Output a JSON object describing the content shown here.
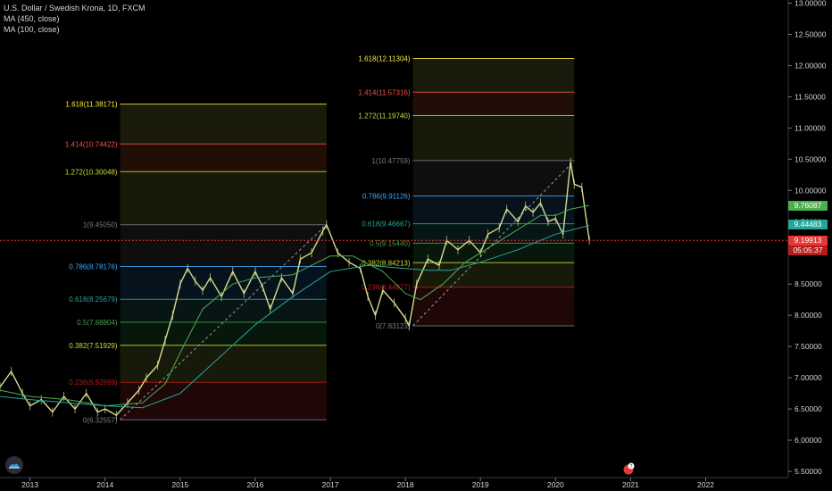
{
  "legend": {
    "title": "U.S. Dollar / Swedish Krona, 1D, FXCM",
    "ma1": "MA (450, close)",
    "ma2": "MA (100, close)"
  },
  "tags": {
    "ma100": "9.76087",
    "ma450": "9.44483",
    "price": "9.19913",
    "countdown": "05:05:37"
  },
  "colors": {
    "bg": "#000000",
    "candle": "#d6dc8f",
    "ma100": "#4caf50",
    "ma450": "#26a69a",
    "price_line": "#e53935",
    "axis_text": "#d1d4dc"
  },
  "chart_data": {
    "type": "line",
    "symbol": "USDSEK",
    "timeframe": "1D",
    "yaxis": {
      "min": 5.4,
      "max": 13.05,
      "ticks": [
        "5.50000",
        "6.00000",
        "6.50000",
        "7.00000",
        "7.50000",
        "8.00000",
        "8.50000",
        "9.00000",
        "9.50000",
        "10.00000",
        "10.50000",
        "11.00000",
        "11.50000",
        "12.00000",
        "12.50000",
        "13.00000"
      ]
    },
    "xaxis": {
      "min": 2012.6,
      "max": 2023.1,
      "ticks": [
        "2013",
        "2014",
        "2015",
        "2016",
        "2017",
        "2018",
        "2019",
        "2020",
        "2021",
        "2022"
      ]
    },
    "series": [
      {
        "x": [
          2012.6,
          2012.75,
          2012.9,
          2013.0,
          2013.15,
          2013.3,
          2013.45,
          2013.6,
          2013.75,
          2013.9,
          2014.0,
          2014.15,
          2014.3,
          2014.45,
          2014.55,
          2014.7,
          2014.8,
          2014.9,
          2015.0,
          2015.1,
          2015.2,
          2015.3,
          2015.4,
          2015.55,
          2015.7,
          2015.85,
          2016.0,
          2016.1,
          2016.2,
          2016.35,
          2016.5,
          2016.6,
          2016.75,
          2016.9,
          2016.95,
          2017.1,
          2017.25,
          2017.4,
          2017.5,
          2017.6,
          2017.7,
          2017.85,
          2018.0,
          2018.05,
          2018.15,
          2018.3,
          2018.45,
          2018.55,
          2018.7,
          2018.85,
          2019.0,
          2019.1,
          2019.25,
          2019.35,
          2019.5,
          2019.6,
          2019.7,
          2019.8,
          2019.9,
          2020.0,
          2020.1,
          2020.2,
          2020.25,
          2020.35,
          2020.45
        ],
        "y": [
          6.85,
          7.1,
          6.75,
          6.55,
          6.65,
          6.45,
          6.7,
          6.5,
          6.75,
          6.45,
          6.5,
          6.4,
          6.6,
          6.8,
          7.0,
          7.2,
          7.6,
          8.0,
          8.5,
          8.75,
          8.55,
          8.4,
          8.6,
          8.3,
          8.7,
          8.35,
          8.7,
          8.45,
          8.1,
          8.6,
          8.35,
          8.9,
          9.0,
          9.35,
          9.45,
          9.0,
          8.85,
          8.75,
          8.3,
          8.0,
          8.4,
          8.2,
          7.95,
          7.83,
          8.5,
          8.9,
          8.8,
          9.2,
          9.05,
          9.2,
          9.0,
          9.3,
          9.4,
          9.7,
          9.5,
          9.75,
          9.65,
          9.8,
          9.5,
          9.55,
          9.3,
          10.45,
          10.1,
          10.05,
          9.2
        ],
        "color": "#d6dc8f"
      },
      {
        "x": [
          2012.6,
          2013.0,
          2013.5,
          2014.0,
          2014.5,
          2014.8,
          2015.0,
          2015.3,
          2015.7,
          2016.0,
          2016.5,
          2017.0,
          2017.3,
          2017.7,
          2018.0,
          2018.2,
          2018.5,
          2018.8,
          2019.0,
          2019.4,
          2019.8,
          2020.0,
          2020.2,
          2020.45
        ],
        "y": [
          6.8,
          6.7,
          6.65,
          6.55,
          6.6,
          6.9,
          7.4,
          8.1,
          8.5,
          8.6,
          8.65,
          8.95,
          8.95,
          8.7,
          8.35,
          8.25,
          8.5,
          8.85,
          9.0,
          9.3,
          9.6,
          9.6,
          9.7,
          9.76
        ],
        "color": "#4caf50"
      },
      {
        "x": [
          2012.6,
          2013.0,
          2013.5,
          2014.0,
          2014.5,
          2015.0,
          2015.5,
          2016.0,
          2016.5,
          2017.0,
          2017.5,
          2018.0,
          2018.3,
          2018.6,
          2019.0,
          2019.5,
          2020.0,
          2020.45
        ],
        "y": [
          6.7,
          6.65,
          6.6,
          6.55,
          6.52,
          6.75,
          7.3,
          7.85,
          8.3,
          8.7,
          8.8,
          8.75,
          8.72,
          8.72,
          8.85,
          9.05,
          9.3,
          9.44
        ],
        "color": "#26a69a"
      }
    ],
    "fib_retracements": [
      {
        "x_start": 2014.2,
        "x_end": 2016.95,
        "levels": [
          {
            "label": "0(6.32557)",
            "value": 6.32557,
            "color": "#787b86"
          },
          {
            "label": "0.236(6.92699)",
            "value": 6.92699,
            "color": "#b71c1c"
          },
          {
            "label": "0.382(7.51929)",
            "value": 7.51929,
            "color": "#cddc39"
          },
          {
            "label": "0.5(7.88804)",
            "value": 7.88804,
            "color": "#43a047"
          },
          {
            "label": "0.618(8.25679)",
            "value": 8.25679,
            "color": "#26a69a"
          },
          {
            "label": "0.786(8.78176)",
            "value": 8.78176,
            "color": "#42a5f5"
          },
          {
            "label": "1(9.45050)",
            "value": 9.4505,
            "color": "#787b86"
          },
          {
            "label": "1.272(10.30048)",
            "value": 10.30048,
            "color": "#cddc39"
          },
          {
            "label": "1.414(10.74422)",
            "value": 10.74422,
            "color": "#ef5350"
          },
          {
            "label": "1.618(11.38171)",
            "value": 11.38171,
            "color": "#ffeb3b"
          }
        ]
      },
      {
        "x_start": 2018.1,
        "x_end": 2020.25,
        "levels": [
          {
            "label": "0(7.83123)",
            "value": 7.83123,
            "color": "#787b86"
          },
          {
            "label": "0.236(8.44977)",
            "value": 8.44977,
            "color": "#b71c1c"
          },
          {
            "label": "0.382(8.84213)",
            "value": 8.84213,
            "color": "#cddc39"
          },
          {
            "label": "0.5(9.15440)",
            "value": 9.1544,
            "color": "#43a047"
          },
          {
            "label": "0.618(9.46667)",
            "value": 9.46667,
            "color": "#26a69a"
          },
          {
            "label": "0.786(9.91126)",
            "value": 9.91126,
            "color": "#42a5f5"
          },
          {
            "label": "1(10.47759)",
            "value": 10.47759,
            "color": "#787b86"
          },
          {
            "label": "1.272(11.19740)",
            "value": 11.1974,
            "color": "#cddc39"
          },
          {
            "label": "1.414(11.57316)",
            "value": 11.57316,
            "color": "#ef5350"
          },
          {
            "label": "1.618(12.11304)",
            "value": 12.11304,
            "color": "#ffeb3b"
          }
        ]
      }
    ],
    "price_line": 9.19913
  }
}
